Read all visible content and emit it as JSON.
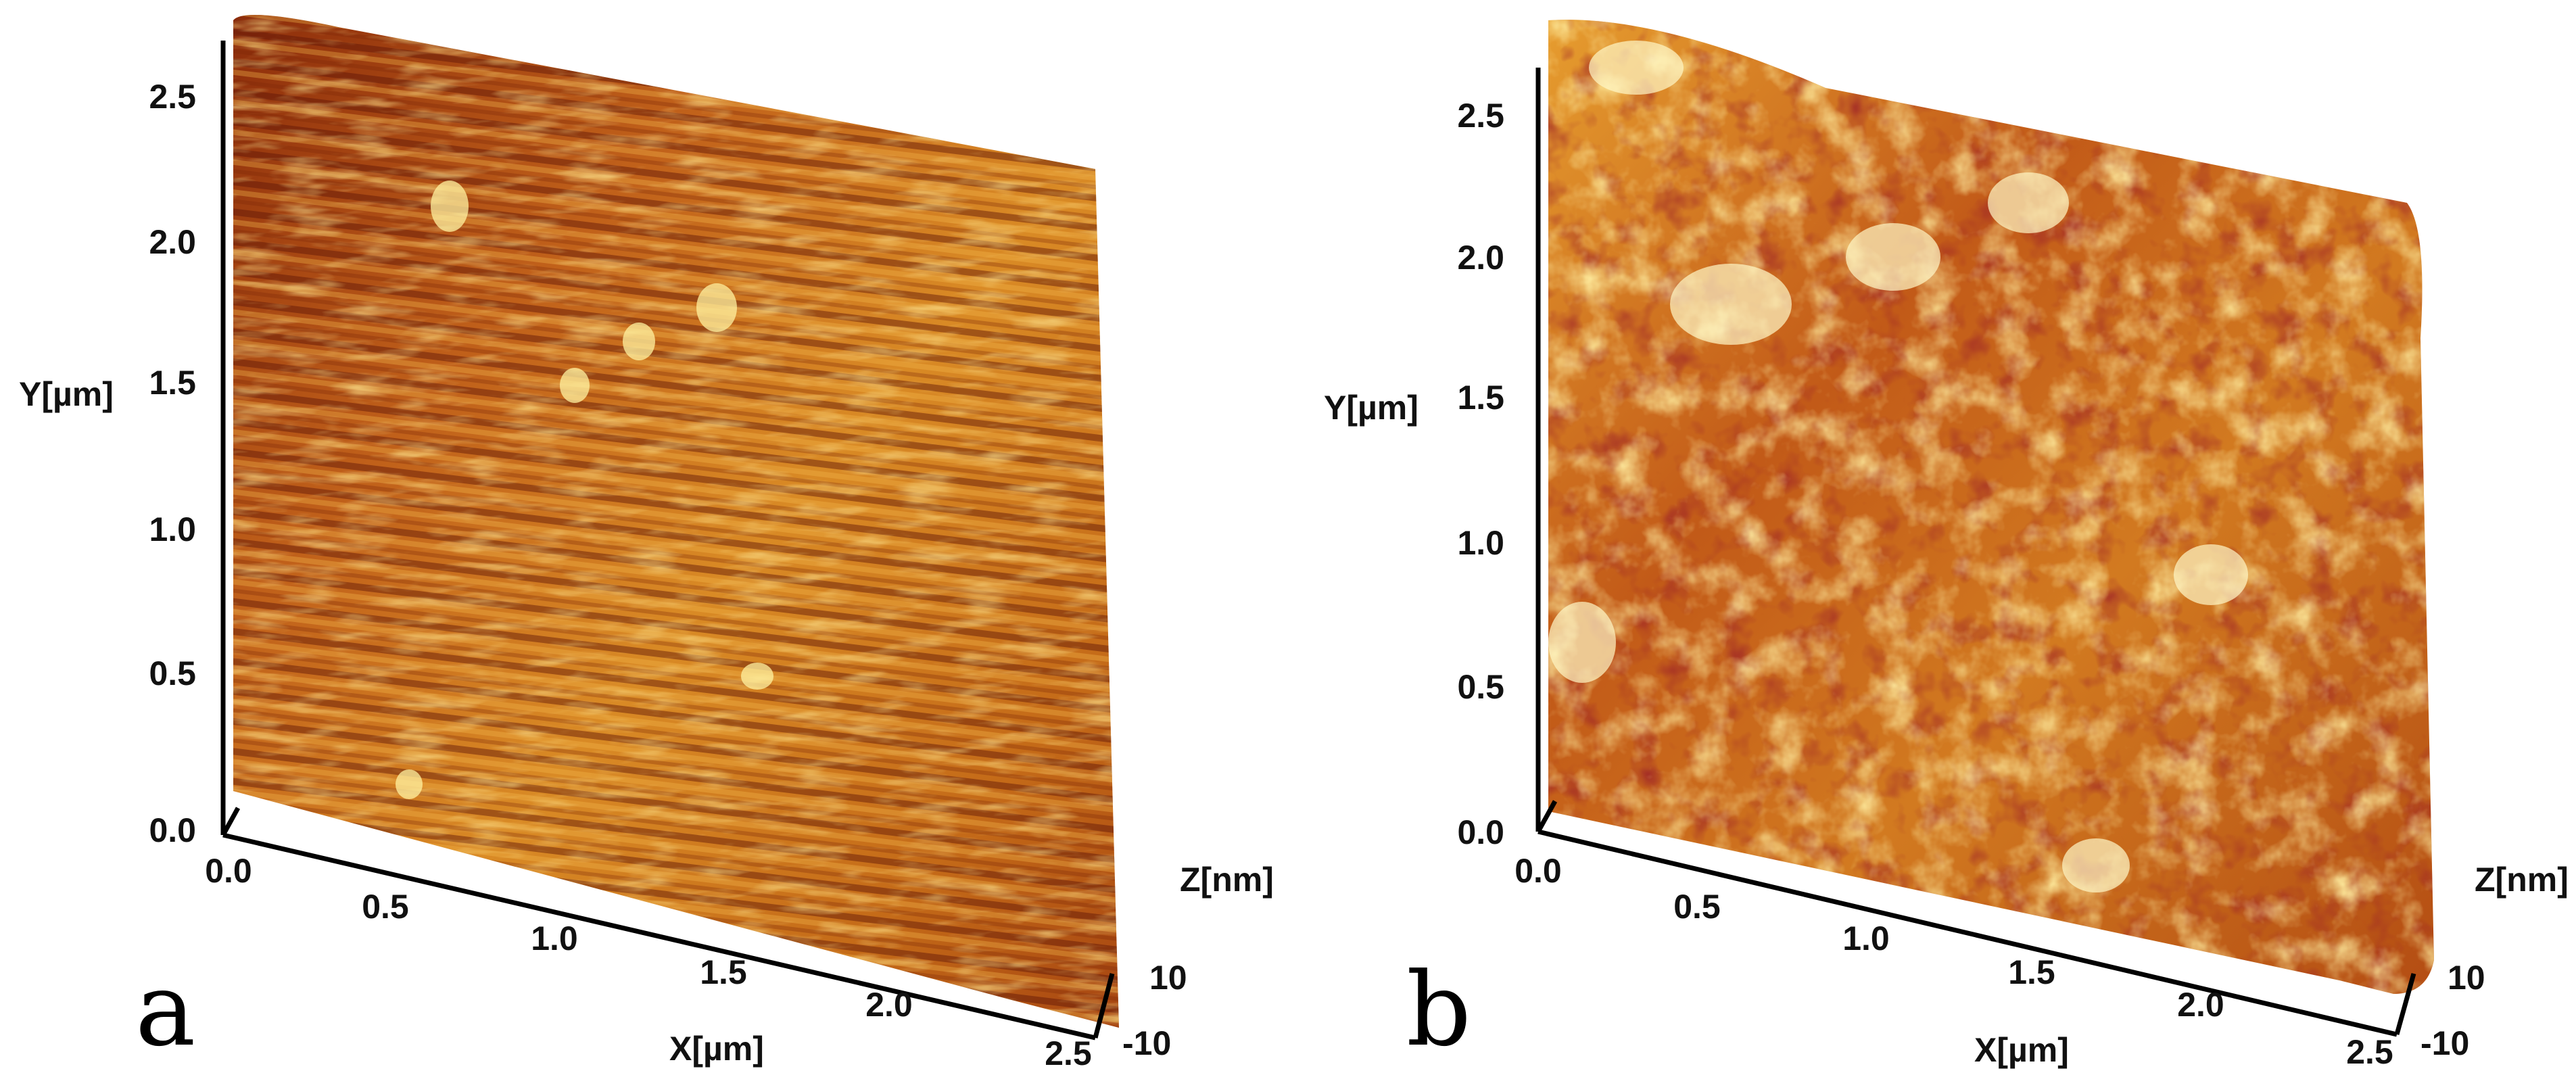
{
  "figure": {
    "panels": [
      {
        "letter": "a",
        "y_axis_label": "Y[µm]",
        "x_axis_label": "X[µm]",
        "z_axis_label": "Z[nm]",
        "y_ticks": [
          "2.5",
          "2.0",
          "1.5",
          "1.0",
          "0.5",
          "0.0"
        ],
        "x_ticks": [
          "0.0",
          "0.5",
          "1.0",
          "1.5",
          "2.0",
          "2.5"
        ],
        "z_ticks": [
          "10",
          "-10"
        ],
        "surface_description": "smooth surface with horizontal striations",
        "palette": {
          "dark": "#6b1508",
          "mid": "#b8540f",
          "light": "#e8a030",
          "highlight": "#fff3a0"
        }
      },
      {
        "letter": "b",
        "y_axis_label": "Y[µm]",
        "x_axis_label": "X[µm]",
        "z_axis_label": "Z[nm]",
        "y_ticks": [
          "2.5",
          "2.0",
          "1.5",
          "1.0",
          "0.5",
          "0.0"
        ],
        "x_ticks": [
          "0.0",
          "0.5",
          "1.0",
          "1.5",
          "2.0",
          "2.5"
        ],
        "z_ticks": [
          "10",
          "-10"
        ],
        "surface_description": "rough granular surface",
        "palette": {
          "dark": "#5a0a0a",
          "mid": "#c05814",
          "light": "#f0b038",
          "highlight": "#fffbd0"
        }
      }
    ]
  }
}
